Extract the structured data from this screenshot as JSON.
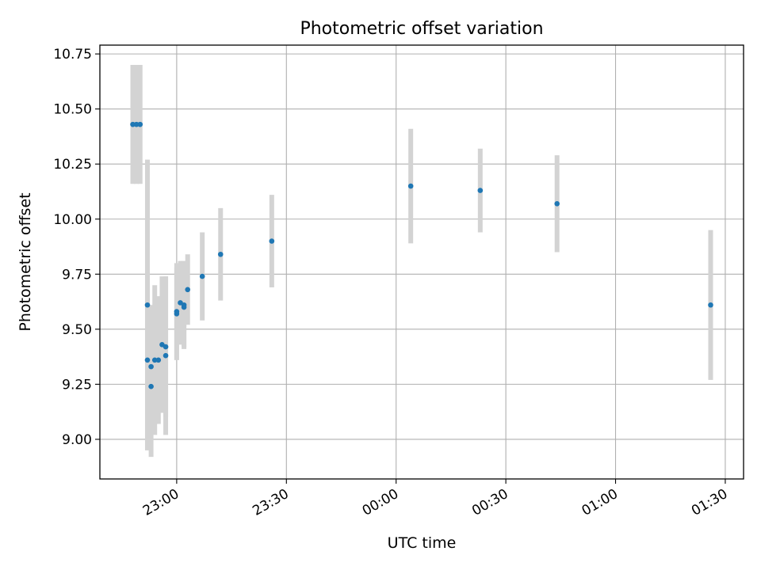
{
  "chart_data": {
    "type": "scatter",
    "title": "Photometric offset variation",
    "xlabel": "UTC time",
    "ylabel": "Photometric offset",
    "x_unit": "UTC time (HH:MM), midnight crossed",
    "xlim": [
      "22:39",
      "01:35"
    ],
    "ylim": [
      8.82,
      10.79
    ],
    "x_ticks": [
      "23:00",
      "23:30",
      "00:00",
      "00:30",
      "01:00",
      "01:30"
    ],
    "y_ticks": [
      "9.00",
      "9.25",
      "9.50",
      "9.75",
      "10.00",
      "10.25",
      "10.50",
      "10.75"
    ],
    "grid": true,
    "marker_color": "#1f77b4",
    "errorbar_color": "#d3d3d3",
    "series": [
      {
        "points": [
          {
            "t": "22:48",
            "y": 10.43,
            "err": 0.27
          },
          {
            "t": "22:49",
            "y": 10.43,
            "err": 0.27
          },
          {
            "t": "22:50",
            "y": 10.43,
            "err": 0.27
          },
          {
            "t": "22:52",
            "y": 9.61,
            "err": 0.66
          },
          {
            "t": "22:52",
            "y": 9.36,
            "err": 0.4
          },
          {
            "t": "22:53",
            "y": 9.24,
            "err": 0.32
          },
          {
            "t": "22:53",
            "y": 9.33,
            "err": 0.28
          },
          {
            "t": "22:54",
            "y": 9.36,
            "err": 0.34
          },
          {
            "t": "22:55",
            "y": 9.36,
            "err": 0.29
          },
          {
            "t": "22:56",
            "y": 9.43,
            "err": 0.31
          },
          {
            "t": "22:57",
            "y": 9.38,
            "err": 0.36
          },
          {
            "t": "22:57",
            "y": 9.42,
            "err": 0.32
          },
          {
            "t": "23:00",
            "y": 9.58,
            "err": 0.22
          },
          {
            "t": "23:00",
            "y": 9.57,
            "err": 0.21
          },
          {
            "t": "23:01",
            "y": 9.62,
            "err": 0.19
          },
          {
            "t": "23:02",
            "y": 9.61,
            "err": 0.2
          },
          {
            "t": "23:02",
            "y": 9.6,
            "err": 0.18
          },
          {
            "t": "23:03",
            "y": 9.68,
            "err": 0.16
          },
          {
            "t": "23:07",
            "y": 9.74,
            "err": 0.2
          },
          {
            "t": "23:12",
            "y": 9.84,
            "err": 0.21
          },
          {
            "t": "23:26",
            "y": 9.9,
            "err": 0.21
          },
          {
            "t": "00:04",
            "y": 10.15,
            "err": 0.26
          },
          {
            "t": "00:23",
            "y": 10.13,
            "err": 0.19
          },
          {
            "t": "00:44",
            "y": 10.07,
            "err": 0.22
          },
          {
            "t": "01:26",
            "y": 9.61,
            "err": 0.34
          }
        ]
      }
    ]
  }
}
